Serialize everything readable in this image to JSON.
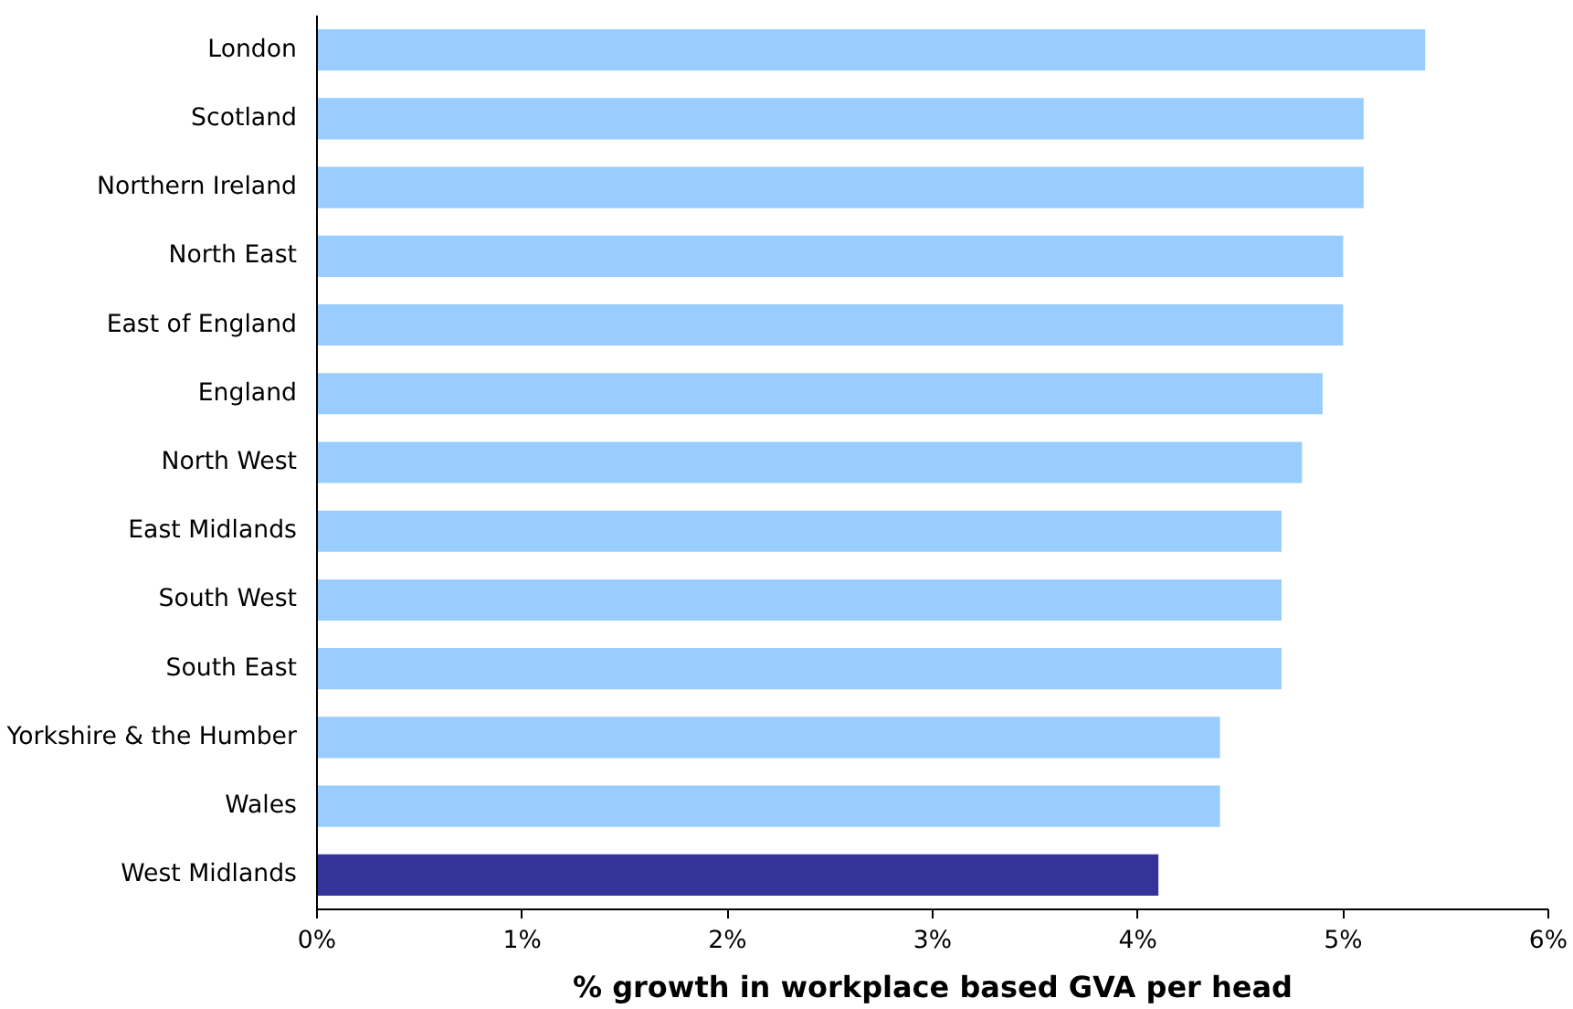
{
  "chart_data": {
    "type": "bar",
    "orientation": "horizontal",
    "xlabel": "% growth in workplace based GVA per head",
    "categories": [
      "London",
      "Scotland",
      "Northern Ireland",
      "North East",
      "East of England",
      "England",
      "North West",
      "East Midlands",
      "South West",
      "South East",
      "Yorkshire & the Humber",
      "Wales",
      "West Midlands"
    ],
    "values": [
      5.4,
      5.1,
      5.1,
      5.0,
      5.0,
      4.9,
      4.8,
      4.7,
      4.7,
      4.7,
      4.4,
      4.4,
      4.1
    ],
    "colors": [
      "#99ccff",
      "#99ccff",
      "#99ccff",
      "#99ccff",
      "#99ccff",
      "#99ccff",
      "#99ccff",
      "#99ccff",
      "#99ccff",
      "#99ccff",
      "#99ccff",
      "#99ccff",
      "#333399"
    ],
    "xlim": [
      0,
      6
    ],
    "xticks": [
      {
        "value": 0,
        "label": "0%"
      },
      {
        "value": 1,
        "label": "1%"
      },
      {
        "value": 2,
        "label": "2%"
      },
      {
        "value": 3,
        "label": "3%"
      },
      {
        "value": 4,
        "label": "4%"
      },
      {
        "value": 5,
        "label": "5%"
      },
      {
        "value": 6,
        "label": "6%"
      }
    ],
    "grid": false
  }
}
